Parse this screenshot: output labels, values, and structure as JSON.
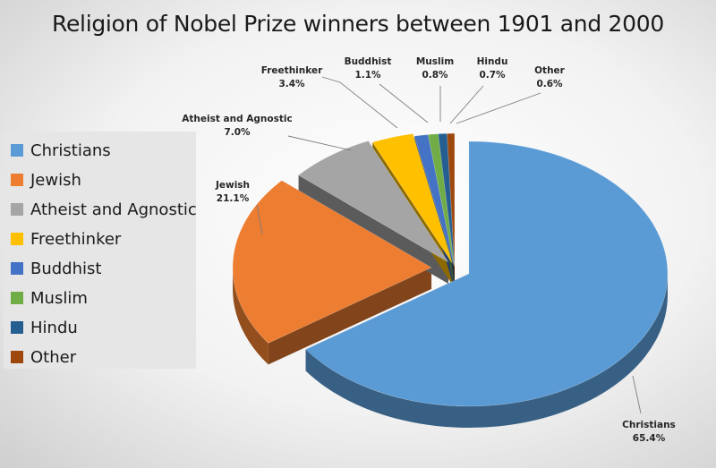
{
  "chart_data": {
    "type": "pie",
    "title": "Religion of Nobel Prize winners between 1901 and 2000",
    "legend_position": "left",
    "slices": [
      {
        "label": "Christians",
        "value": 65.4,
        "display": "65.4%",
        "color": "#5b9bd5"
      },
      {
        "label": "Jewish",
        "value": 21.1,
        "display": "21.1%",
        "color": "#ed7d31"
      },
      {
        "label": "Atheist and Agnostic",
        "value": 7.0,
        "display": "7.0%",
        "color": "#a5a5a5"
      },
      {
        "label": "Freethinker",
        "value": 3.4,
        "display": "3.4%",
        "color": "#ffc000"
      },
      {
        "label": "Buddhist",
        "value": 1.1,
        "display": "1.1%",
        "color": "#4472c4"
      },
      {
        "label": "Muslim",
        "value": 0.8,
        "display": "0.8%",
        "color": "#70ad47"
      },
      {
        "label": "Hindu",
        "value": 0.7,
        "display": "0.7%",
        "color": "#255e91"
      },
      {
        "label": "Other",
        "value": 0.6,
        "display": "0.6%",
        "color": "#9e480e"
      }
    ]
  }
}
